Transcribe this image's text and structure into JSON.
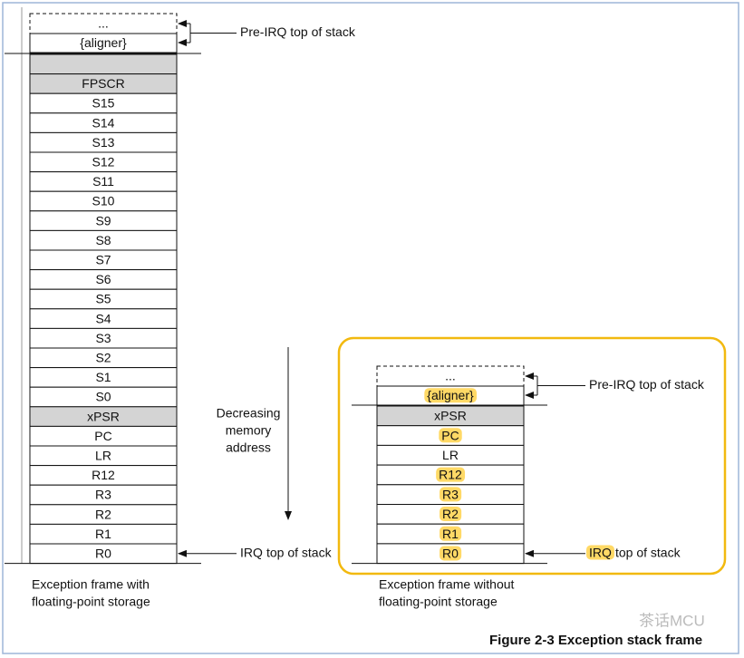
{
  "left": {
    "above": [
      {
        "label": "...",
        "dashed": true
      },
      {
        "label": "{aligner}"
      }
    ],
    "cells": [
      {
        "fill": "#d4d4d4"
      },
      {
        "label": "FPSCR",
        "fill": "#d4d4d4"
      },
      {
        "label": "S15"
      },
      {
        "label": "S14"
      },
      {
        "label": "S13"
      },
      {
        "label": "S12"
      },
      {
        "label": "S11"
      },
      {
        "label": "S10"
      },
      {
        "label": "S9"
      },
      {
        "label": "S8"
      },
      {
        "label": "S7"
      },
      {
        "label": "S6"
      },
      {
        "label": "S5"
      },
      {
        "label": "S4"
      },
      {
        "label": "S3"
      },
      {
        "label": "S2"
      },
      {
        "label": "S1"
      },
      {
        "label": "S0"
      },
      {
        "label": "xPSR",
        "fill": "#d4d4d4"
      },
      {
        "label": "PC"
      },
      {
        "label": "LR"
      },
      {
        "label": "R12"
      },
      {
        "label": "R3"
      },
      {
        "label": "R2"
      },
      {
        "label": "R1"
      },
      {
        "label": "R0"
      }
    ],
    "caption": [
      "Exception frame with",
      "floating-point storage"
    ],
    "pre_irq": "Pre-IRQ top of stack",
    "irq": {
      "highlight": "IRQ",
      "rest": "top of stack"
    }
  },
  "right": {
    "above": [
      {
        "label": "...",
        "dashed": true
      },
      {
        "label": "{aligner}",
        "highlight": "#ffd966"
      }
    ],
    "cells": [
      {
        "label": "xPSR",
        "fill": "#d4d4d4"
      },
      {
        "label": "PC",
        "highlight": "#ffd966"
      },
      {
        "label": "LR"
      },
      {
        "label": "R12",
        "highlight": "#ffd966"
      },
      {
        "label": "R3",
        "highlight": "#ffd966"
      },
      {
        "label": "R2",
        "highlight": "#ffd966"
      },
      {
        "label": "R1",
        "highlight": "#ffd966"
      },
      {
        "label": "R0",
        "highlight": "#ffd966"
      }
    ],
    "caption": [
      "Exception frame without",
      "floating-point storage"
    ],
    "pre_irq": "Pre-IRQ top of stack",
    "irq": {
      "highlight": "IRQ",
      "rest": "top of stack",
      "color": "#ffd966"
    }
  },
  "arrow_label": [
    "Decreasing",
    "memory",
    "address"
  ],
  "figure_title": "Figure 2-3 Exception stack frame",
  "watermark": "茶话MCU"
}
